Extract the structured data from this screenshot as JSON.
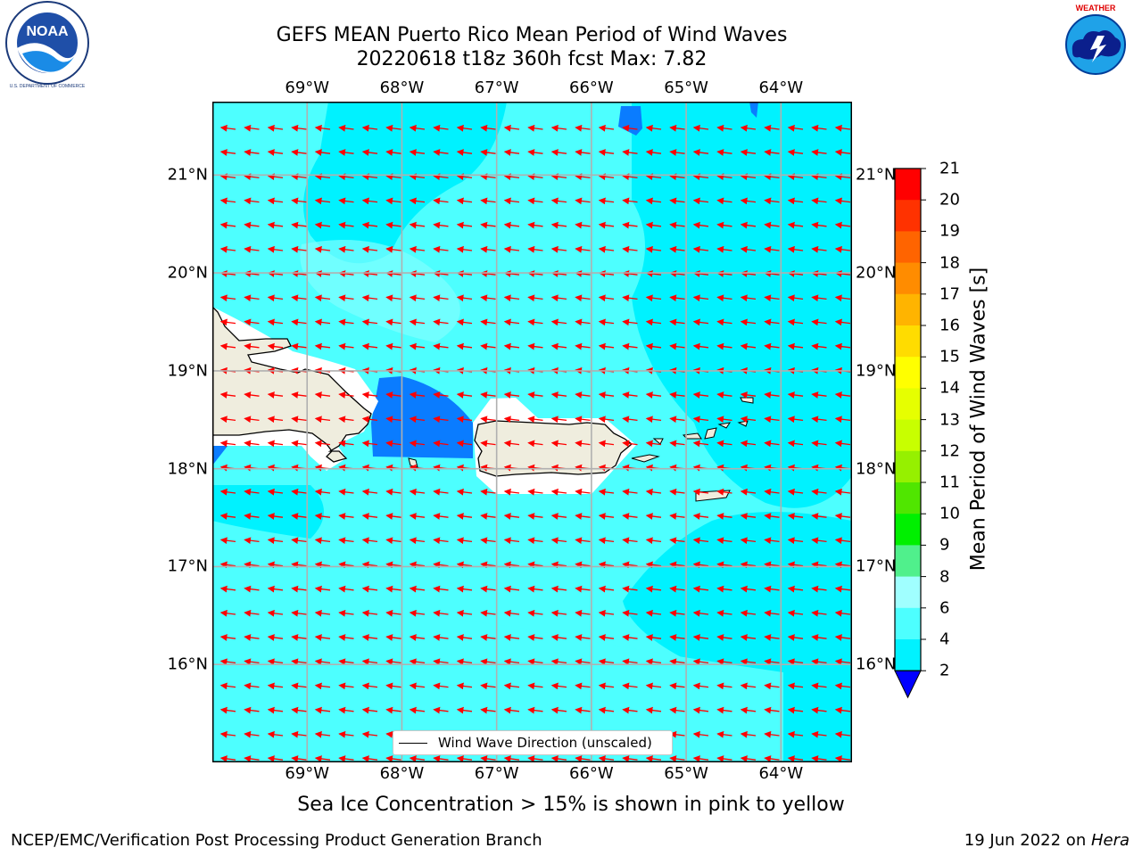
{
  "title": {
    "line1": "GEFS MEAN Puerto Rico Mean Period of Wind Waves",
    "line2": "20220618 t18z 360h fcst   Max: 7.82"
  },
  "map": {
    "lon_labels": [
      "69°W",
      "68°W",
      "67°W",
      "66°W",
      "65°W",
      "64°W"
    ],
    "lat_labels": [
      "21°N",
      "20°N",
      "19°N",
      "18°N",
      "17°N",
      "16°N"
    ],
    "extent": {
      "lon": [
        -70.0,
        -63.25
      ],
      "lat": [
        15.0,
        21.75
      ]
    },
    "wind_wave_direction": "westward (east to west)",
    "colors": {
      "land": "#efedde",
      "sea_base": "#4dffff",
      "sea_light": "#7fffff",
      "sea_deep": "#00f2ff",
      "low_period": "#0a7cff",
      "arrow": "#ff0000",
      "grid": "#b0b0b0",
      "coast": "#000000"
    }
  },
  "legend": {
    "label": "Wind Wave Direction (unscaled)"
  },
  "colorbar": {
    "title": "Mean Period of Wind Waves [s]",
    "ticks": [
      "21",
      "20",
      "19",
      "18",
      "17",
      "16",
      "15",
      "14",
      "13",
      "12",
      "11",
      "10",
      "9",
      "8",
      "6",
      "4",
      "2"
    ],
    "colors": [
      "#ff0000",
      "#ff3200",
      "#ff6400",
      "#ff8c00",
      "#ffb400",
      "#ffdc00",
      "#ffff00",
      "#e6ff00",
      "#c8ff00",
      "#96f000",
      "#50e600",
      "#00f000",
      "#50f08c",
      "#a0ffff",
      "#4dffff",
      "#00f2ff",
      "#0a7cff",
      "#0000ff"
    ]
  },
  "note": "Sea Ice Concentration > 15% is shown in pink to yellow",
  "footer": {
    "left": "NCEP/EMC/Verification Post Processing Product Generation Branch",
    "right_prefix": "19 Jun 2022 on ",
    "right_host": "Hera"
  },
  "logos": {
    "noaa": "NOAA",
    "nws": "NATIONAL WEATHER SERVICE"
  }
}
